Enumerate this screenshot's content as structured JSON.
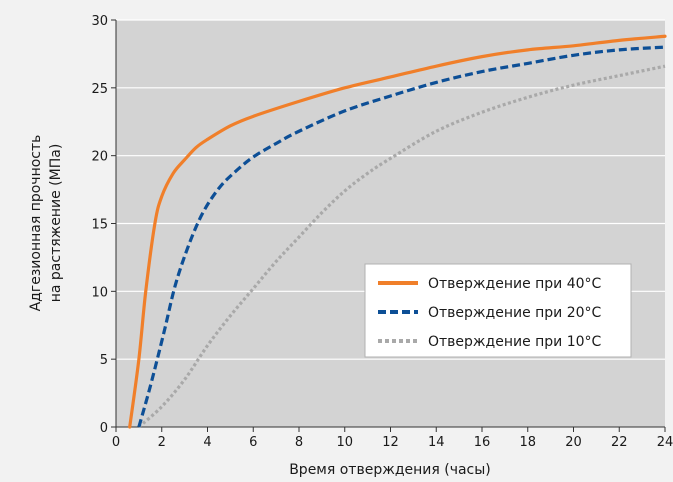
{
  "chart_data": {
    "type": "line",
    "title": "",
    "xlabel": "Время отверждения (часы)",
    "ylabel_lines": [
      "Адгезионная прочность",
      "на растяжение (МПа)"
    ],
    "xlim": [
      0,
      24
    ],
    "ylim": [
      0,
      30
    ],
    "x_ticks": [
      0,
      2,
      4,
      6,
      8,
      10,
      12,
      14,
      16,
      18,
      20,
      22,
      24
    ],
    "y_ticks": [
      0,
      5,
      10,
      15,
      20,
      25,
      30
    ],
    "grid": "horizontal",
    "legend_position": "center-right",
    "series": [
      {
        "name": "Отверждение при 40°C",
        "style": "solid",
        "color": "#f07f2a",
        "points": [
          [
            0.6,
            0
          ],
          [
            1.0,
            5
          ],
          [
            1.3,
            10
          ],
          [
            1.7,
            15
          ],
          [
            2.0,
            17
          ],
          [
            2.5,
            18.7
          ],
          [
            3,
            19.7
          ],
          [
            3.5,
            20.6
          ],
          [
            4,
            21.2
          ],
          [
            5,
            22.2
          ],
          [
            6,
            22.9
          ],
          [
            8,
            24
          ],
          [
            10,
            25
          ],
          [
            12,
            25.8
          ],
          [
            14,
            26.6
          ],
          [
            16,
            27.3
          ],
          [
            18,
            27.8
          ],
          [
            20,
            28.1
          ],
          [
            22,
            28.5
          ],
          [
            24,
            28.8
          ]
        ]
      },
      {
        "name": "Отверждение при 20°C",
        "style": "dashed",
        "color": "#0d4f96",
        "points": [
          [
            1.0,
            0
          ],
          [
            1.5,
            3
          ],
          [
            2.1,
            7
          ],
          [
            2.6,
            10.5
          ],
          [
            3.2,
            13.5
          ],
          [
            3.8,
            15.8
          ],
          [
            4.5,
            17.6
          ],
          [
            5.2,
            18.8
          ],
          [
            6,
            19.9
          ],
          [
            7,
            20.9
          ],
          [
            8,
            21.8
          ],
          [
            10,
            23.3
          ],
          [
            12,
            24.4
          ],
          [
            14,
            25.4
          ],
          [
            16,
            26.2
          ],
          [
            18,
            26.8
          ],
          [
            20,
            27.4
          ],
          [
            22,
            27.8
          ],
          [
            24,
            28
          ]
        ]
      },
      {
        "name": "Отверждение при 10°C",
        "style": "dotted",
        "color": "#a9a9a9",
        "points": [
          [
            1.0,
            0
          ],
          [
            2,
            1.5
          ],
          [
            3,
            3.5
          ],
          [
            4,
            6
          ],
          [
            5,
            8.2
          ],
          [
            6,
            10.2
          ],
          [
            7,
            12.2
          ],
          [
            8,
            14
          ],
          [
            9,
            15.8
          ],
          [
            10,
            17.4
          ],
          [
            11,
            18.7
          ],
          [
            12,
            19.8
          ],
          [
            14,
            21.8
          ],
          [
            16,
            23.2
          ],
          [
            18,
            24.3
          ],
          [
            20,
            25.2
          ],
          [
            22,
            25.9
          ],
          [
            24,
            26.6
          ]
        ]
      }
    ]
  }
}
